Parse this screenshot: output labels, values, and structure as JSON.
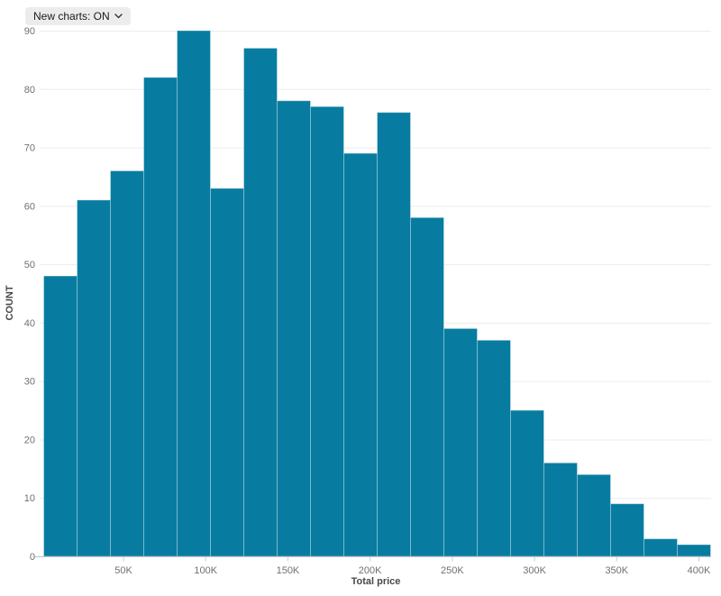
{
  "controls": {
    "new_charts_label": "New charts: ON",
    "dropdown_icon": "chevron-down-icon"
  },
  "chart_data": {
    "type": "bar",
    "subtype": "histogram",
    "title": "",
    "xlabel": "Total price",
    "ylabel": "COUNT",
    "values": [
      48,
      61,
      66,
      82,
      90,
      63,
      87,
      78,
      77,
      69,
      76,
      58,
      39,
      37,
      25,
      16,
      14,
      9,
      3,
      2
    ],
    "first_bin_start_k": 1.5,
    "bin_width_k": 20.2,
    "x_tick_values_k": [
      50,
      100,
      150,
      200,
      250,
      300,
      350,
      400
    ],
    "x_tick_labels": [
      "50K",
      "100K",
      "150K",
      "200K",
      "250K",
      "300K",
      "350K",
      "400K"
    ],
    "y_ticks": [
      0,
      10,
      20,
      30,
      40,
      50,
      60,
      70,
      80,
      90
    ],
    "ylim": [
      0,
      90
    ],
    "grid": true,
    "legend": "none",
    "colors": {
      "bar_fill": "#087ca0",
      "bar_stroke": "rgba(255,255,255,0.35)",
      "gridline": "#ececec",
      "axis_line": "#c2c2c2",
      "tick_mark": "#cccccc",
      "tick_text": "#707070",
      "axis_title_text": "#484848",
      "dropdown_bg": "#ececec",
      "dropdown_text": "#1a1a1a"
    }
  }
}
